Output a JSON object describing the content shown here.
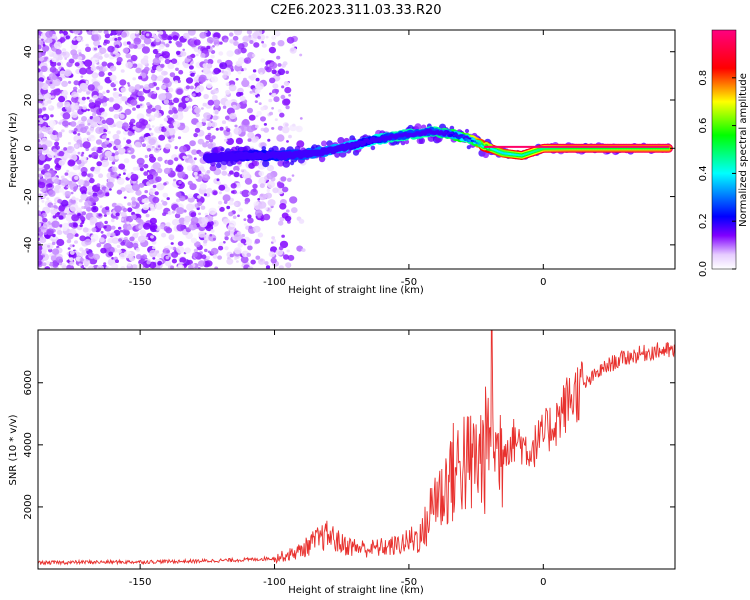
{
  "title": "C2E6.2023.311.03.33.R20",
  "chart_data": [
    {
      "type": "heatmap",
      "xlabel": "Height of straight line (km)",
      "ylabel": "Frequency (Hz)",
      "xlim": [
        -188,
        49
      ],
      "ylim": [
        -50,
        49
      ],
      "x_ticks": [
        -150,
        -100,
        -50,
        0
      ],
      "y_ticks": [
        -40,
        -20,
        0,
        20,
        40
      ],
      "colorbar": {
        "label": "Normalized spectral amplitude",
        "range": [
          0.0,
          1.0
        ],
        "ticks": [
          0.0,
          0.2,
          0.4,
          0.6,
          0.8
        ],
        "colors": [
          "#ffffff",
          "#e6ccff",
          "#8000ff",
          "#0000ff",
          "#00ffff",
          "#00ff00",
          "#ffff00",
          "#ff0000",
          "#ff0080"
        ]
      },
      "ridge": {
        "height_km": [
          -125,
          -110,
          -95,
          -85,
          -75,
          -65,
          -55,
          -48,
          -42,
          -35,
          -28,
          -22,
          -15,
          -8,
          0,
          10,
          20,
          47
        ],
        "frequency_hz": [
          -4,
          -3,
          -3,
          -2,
          0,
          3,
          5,
          6,
          7,
          6,
          4,
          1,
          -2,
          -3,
          0,
          0,
          0,
          0
        ],
        "amplitude": [
          0.15,
          0.2,
          0.25,
          0.3,
          0.35,
          0.4,
          0.45,
          0.45,
          0.45,
          0.5,
          0.6,
          0.85,
          0.8,
          0.85,
          0.9,
          0.95,
          0.95,
          0.95
        ]
      }
    },
    {
      "type": "line",
      "xlabel": "Height of straight line (km)",
      "ylabel": "SNR (10 * v/v)",
      "xlim": [
        -188,
        49
      ],
      "ylim": [
        0,
        7700
      ],
      "x_ticks": [
        -150,
        -100,
        -50,
        0
      ],
      "y_ticks": [
        2000,
        4000,
        6000
      ],
      "series": [
        {
          "color": "#e8312e",
          "x": [
            -188,
            -170,
            -150,
            -130,
            -110,
            -100,
            -95,
            -90,
            -85,
            -80,
            -75,
            -70,
            -65,
            -60,
            -55,
            -50,
            -45,
            -42,
            -40,
            -38,
            -35,
            -32,
            -30,
            -28,
            -25,
            -22,
            -20,
            -19,
            -18,
            -15,
            -10,
            -5,
            0,
            5,
            10,
            15,
            20,
            25,
            30,
            35,
            40,
            45,
            49
          ],
          "y": [
            200,
            220,
            230,
            250,
            300,
            350,
            450,
            600,
            900,
            1100,
            800,
            700,
            650,
            700,
            750,
            900,
            1100,
            1800,
            2500,
            2300,
            3000,
            3200,
            3600,
            3300,
            3500,
            3700,
            4200,
            7500,
            3600,
            3900,
            4200,
            3800,
            4300,
            4800,
            5500,
            5900,
            6300,
            6600,
            6800,
            6900,
            7000,
            7050,
            7000
          ]
        }
      ]
    }
  ]
}
